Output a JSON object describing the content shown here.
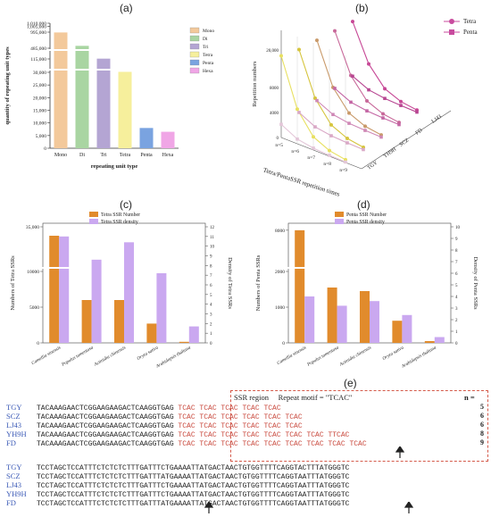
{
  "panels": {
    "a": "(a)",
    "b": "(b)",
    "c": "(c)",
    "d": "(d)",
    "e": "(e)"
  },
  "colors": {
    "mono": "#f3c99b",
    "di": "#a9d5a2",
    "tri": "#b4a5d3",
    "tetra": "#f6ef9c",
    "penta": "#7aa3e0",
    "hexa": "#f0a6e6",
    "tetra_line": "#c84b9e",
    "penta_line": "#c84b9e",
    "orange": "#e18b2c",
    "violet": "#caa8f0"
  },
  "chart_data": [
    {
      "id": "a",
      "type": "bar",
      "xlabel": "repeating unit type",
      "ylabel": "quantity of repeating unit types",
      "categories": [
        "Mono",
        "Di",
        "Tri",
        "Tetra",
        "Penta",
        "Hexa"
      ],
      "values": [
        985000,
        560000,
        125000,
        33000,
        8000,
        6500
      ],
      "yticks": [
        "0",
        "5,000",
        "10,000",
        "15,000",
        "20,000",
        "25,000",
        "30,000",
        "115,000",
        "485,000",
        "995,000",
        "1,005,000",
        "1,010,000"
      ],
      "legend": [
        "Mono",
        "Di",
        "Tri",
        "Tetra",
        "Penta",
        "Hexa"
      ],
      "axis_break": true
    },
    {
      "id": "b",
      "type": "line",
      "xlabel": "Tetra/PentaSSR repetition times",
      "ylabel": "Repetition numbers",
      "x": [
        "n=5",
        "n=6",
        "n=7",
        "n=8",
        "n=9"
      ],
      "z_categories": [
        "TGY",
        "YH9H",
        "SCZ",
        "FD",
        "LJ43"
      ],
      "yticks": [
        "0",
        "4000",
        "8000",
        "20,000"
      ],
      "legend": [
        "Tetra",
        "Penta"
      ],
      "series": [
        {
          "name": "Tetra",
          "values": [
            [
              26000,
              11000,
              4200,
              1800,
              900
            ],
            [
              24000,
              10500,
              4000,
              1700,
              850
            ],
            [
              23000,
              10000,
              3800,
              1600,
              820
            ],
            [
              22000,
              9800,
              3700,
              1550,
              800
            ],
            [
              21000,
              9500,
              3600,
              1500,
              780
            ]
          ]
        },
        {
          "name": "Penta",
          "values": [
            [
              4200,
              1500,
              600,
              300,
              150
            ],
            [
              4000,
              1400,
              560,
              280,
              140
            ],
            [
              3800,
              1350,
              540,
              270,
              135
            ],
            [
              3700,
              1300,
              520,
              260,
              130
            ],
            [
              3600,
              1250,
              500,
              250,
              125
            ]
          ]
        }
      ]
    },
    {
      "id": "c",
      "type": "bar",
      "ylabel": "Numbers of Tetra SSRs",
      "y2label": "Density of Tetra SSRs",
      "categories": [
        "Camellia sinensis",
        "Populus tomentosa",
        "Actinidia chinensis",
        "Oryza sativa",
        "Arabidopsis thaliana"
      ],
      "legend": [
        "Tetra SSR Number",
        "Tetra SSR density"
      ],
      "yticks": [
        "0",
        "5000",
        "10000",
        "35,000"
      ],
      "y2ticks": [
        "0",
        "1",
        "2",
        "3",
        "4",
        "5",
        "6",
        "7",
        "8",
        "9",
        "10",
        "11",
        "12"
      ],
      "series": [
        {
          "name": "Tetra SSR Number",
          "values": [
            30000,
            6000,
            6000,
            2700,
            150
          ]
        },
        {
          "name": "Tetra SSR density",
          "values": [
            11.0,
            8.6,
            10.4,
            7.2,
            1.7
          ]
        }
      ],
      "ylim": [
        0,
        12
      ]
    },
    {
      "id": "d",
      "type": "bar",
      "ylabel": "Numbers of Penta SSRs",
      "y2label": "Density of Penta SSRs",
      "categories": [
        "Camellia sinensis",
        "Populus tomentosa",
        "Actinidia chinensis",
        "Oryza sativa",
        "Arabidopsis thaliana"
      ],
      "legend": [
        "Penta SSR Number",
        "Penta SSR density"
      ],
      "yticks": [
        "0",
        "1000",
        "2000",
        "8000"
      ],
      "y2ticks": [
        "0",
        "1",
        "2",
        "3",
        "4",
        "5",
        "6",
        "7",
        "8",
        "9",
        "10"
      ],
      "series": [
        {
          "name": "Penta SSR Number",
          "values": [
            8000,
            1550,
            1450,
            620,
            50
          ]
        },
        {
          "name": "Penta SSR density",
          "values": [
            4.0,
            3.2,
            3.6,
            2.4,
            0.5
          ]
        }
      ],
      "ylim": [
        0,
        10
      ]
    }
  ],
  "alignment": {
    "region_label": "SSR region",
    "motif_label": "Repeat motif = \"TCAC\"",
    "n_label": "n =",
    "block1": [
      {
        "name": "TGY",
        "base": "TACAAAGAACTCGGAAGAAGACTCAAGGTGAG",
        "motif": "TCAC TCAC TCAC TCAC TCAC",
        "count": "5"
      },
      {
        "name": "SCZ",
        "base": "TACAAAGAACTCGGAAGAAGACTCAAGGTGAG",
        "motif": "TCAC TCAC TCAC TCAC TCAC TCAC",
        "count": "6"
      },
      {
        "name": "LJ43",
        "base": "TACAAAGAACTCGGAAGAAGACTCAAGGTGAG",
        "motif": "TCAC TCAC TCAC TCAC TCAC TCAC",
        "count": "6"
      },
      {
        "name": "YH9H",
        "base": "TACAAAGAACTCGGAAGAAGACTCAAGGTGAG",
        "motif": "TCAC TCAC TCAC TCAC TCAC TCAC TCAC TTCAC",
        "count": "8"
      },
      {
        "name": "FD",
        "base": "TACAAAGAACTCGGAAGAAGACTCAAGGTGAG",
        "motif": "TCAC TCAC TCAC TCAC TCAC TCAC TCAC TCAC TCAC",
        "count": "9"
      }
    ],
    "block2": [
      {
        "name": "TGY",
        "base": "TCCTAGCTCCATTTCTCTCTCTTTGATTTCTGAAAATTATGACTAACTGTGGTTTTCAGGTACTTTATGGGTC"
      },
      {
        "name": "SCZ",
        "base": "TCCTAGCTCCATTTCTCTCTCTTTGATTTATGAAAATTATGACTAACTGTGGTTTTCAGGTAATTTATGGGTC"
      },
      {
        "name": "LJ43",
        "base": "TCCTAGCTCCATTTCTCTCTCTTTGATTTCTGAAAATTATGACTAACTGTGGTTTTCAGGTAATTTATGGGTC"
      },
      {
        "name": "YH9H",
        "base": "TCCTAGCTCCATTTCTCTCTCTTTGATTTCTGAAAATTATGACTAACTGTGGTTTTCAGGTAATTTATGGGTC"
      },
      {
        "name": "FD",
        "base": "TCCTAGCTCCATTTCTCTCTCTTTGATTTATGAAAATTATGACTAACTGTGGTTTTCAGGTAATTTATGGGTC"
      }
    ]
  }
}
